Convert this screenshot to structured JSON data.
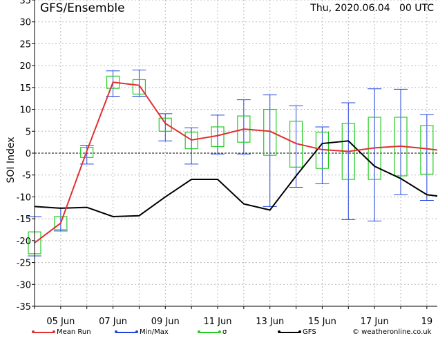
{
  "header": {
    "title": "GFS/Ensemble",
    "run": "Thu, 2020.06.04   00 UTC"
  },
  "colors": {
    "mean": "#e03030",
    "minmax": "#2244dd",
    "sigma": "#22cc22",
    "gfs": "#000000"
  },
  "legend": {
    "mean": "Mean Run",
    "minmax": "Min/Max",
    "sigma": "σ",
    "gfs": "GFS",
    "credit": "© weatheronline.co.uk"
  },
  "chart_data": {
    "type": "line",
    "ylabel": "SOI Index",
    "ylim": [
      -35,
      35
    ],
    "yticks": [
      -35,
      -30,
      -25,
      -20,
      -15,
      -10,
      -5,
      0,
      5,
      10,
      15,
      20,
      25,
      30,
      35
    ],
    "xlim": [
      4.0,
      19.4
    ],
    "xticks": [
      {
        "x": 5,
        "label": "05 Jun"
      },
      {
        "x": 7,
        "label": "07 Jun"
      },
      {
        "x": 9,
        "label": "09 Jun"
      },
      {
        "x": 11,
        "label": "11 Jun"
      },
      {
        "x": 13,
        "label": "13 Jun"
      },
      {
        "x": 15,
        "label": "15 Jun"
      },
      {
        "x": 17,
        "label": "17 Jun"
      },
      {
        "x": 19,
        "label": "19"
      }
    ],
    "grid": true,
    "mean_run": {
      "x": [
        4.0,
        5.0,
        6.0,
        7.0,
        8.0,
        9.0,
        10.0,
        11.0,
        12.0,
        13.0,
        14.0,
        15.0,
        16.0,
        17.0,
        18.0,
        19.0,
        19.4
      ],
      "y": [
        -20.5,
        -16.0,
        0.5,
        16.2,
        15.5,
        6.8,
        3.0,
        4.0,
        5.5,
        5.0,
        2.2,
        0.8,
        0.4,
        1.2,
        1.6,
        1.0,
        0.7
      ]
    },
    "gfs": {
      "x": [
        4.0,
        5.0,
        6.0,
        7.0,
        8.0,
        9.0,
        10.0,
        11.0,
        12.0,
        13.0,
        14.0,
        15.0,
        16.0,
        17.0,
        18.0,
        19.0,
        19.4
      ],
      "y": [
        -12.2,
        -12.6,
        -12.4,
        -14.5,
        -14.3,
        -10.0,
        -6.0,
        -6.0,
        -11.6,
        -13.0,
        -5.2,
        2.2,
        2.8,
        -3.0,
        -5.8,
        -9.5,
        -9.8
      ]
    },
    "sigma": [
      {
        "x": 4.0,
        "low": -23.0,
        "high": -18.0
      },
      {
        "x": 5.0,
        "low": -17.5,
        "high": -14.5
      },
      {
        "x": 6.0,
        "low": -1.0,
        "high": 1.3
      },
      {
        "x": 7.0,
        "low": 14.8,
        "high": 17.6
      },
      {
        "x": 8.0,
        "low": 13.5,
        "high": 16.8
      },
      {
        "x": 9.0,
        "low": 5.0,
        "high": 8.0
      },
      {
        "x": 10.0,
        "low": 1.0,
        "high": 4.8
      },
      {
        "x": 11.0,
        "low": 1.5,
        "high": 6.0
      },
      {
        "x": 12.0,
        "low": 2.5,
        "high": 8.5
      },
      {
        "x": 13.0,
        "low": -0.5,
        "high": 10.0
      },
      {
        "x": 14.0,
        "low": -3.2,
        "high": 7.3
      },
      {
        "x": 15.0,
        "low": -3.5,
        "high": 4.8
      },
      {
        "x": 16.0,
        "low": -6.0,
        "high": 6.8
      },
      {
        "x": 17.0,
        "low": -6.0,
        "high": 8.2
      },
      {
        "x": 18.0,
        "low": -5.2,
        "high": 8.2
      },
      {
        "x": 19.0,
        "low": -4.8,
        "high": 6.3
      }
    ],
    "minmax": [
      {
        "x": 4.0,
        "min": -23.5,
        "max": -14.5
      },
      {
        "x": 5.0,
        "min": -17.8,
        "max": -12.5
      },
      {
        "x": 6.0,
        "min": -2.5,
        "max": 1.8
      },
      {
        "x": 7.0,
        "min": 13.0,
        "max": 18.8
      },
      {
        "x": 8.0,
        "min": 13.0,
        "max": 19.0
      },
      {
        "x": 9.0,
        "min": 2.8,
        "max": 9.0
      },
      {
        "x": 10.0,
        "min": -2.5,
        "max": 5.8
      },
      {
        "x": 11.0,
        "min": -0.2,
        "max": 8.7
      },
      {
        "x": 12.0,
        "min": -0.2,
        "max": 12.2
      },
      {
        "x": 13.0,
        "min": -12.2,
        "max": 13.3
      },
      {
        "x": 14.0,
        "min": -7.8,
        "max": 10.8
      },
      {
        "x": 15.0,
        "min": -7.0,
        "max": 6.0
      },
      {
        "x": 16.0,
        "min": -15.2,
        "max": 11.5
      },
      {
        "x": 17.0,
        "min": -15.5,
        "max": 14.7
      },
      {
        "x": 18.0,
        "min": -9.5,
        "max": 14.6
      },
      {
        "x": 19.0,
        "min": -10.8,
        "max": 8.8
      }
    ]
  }
}
